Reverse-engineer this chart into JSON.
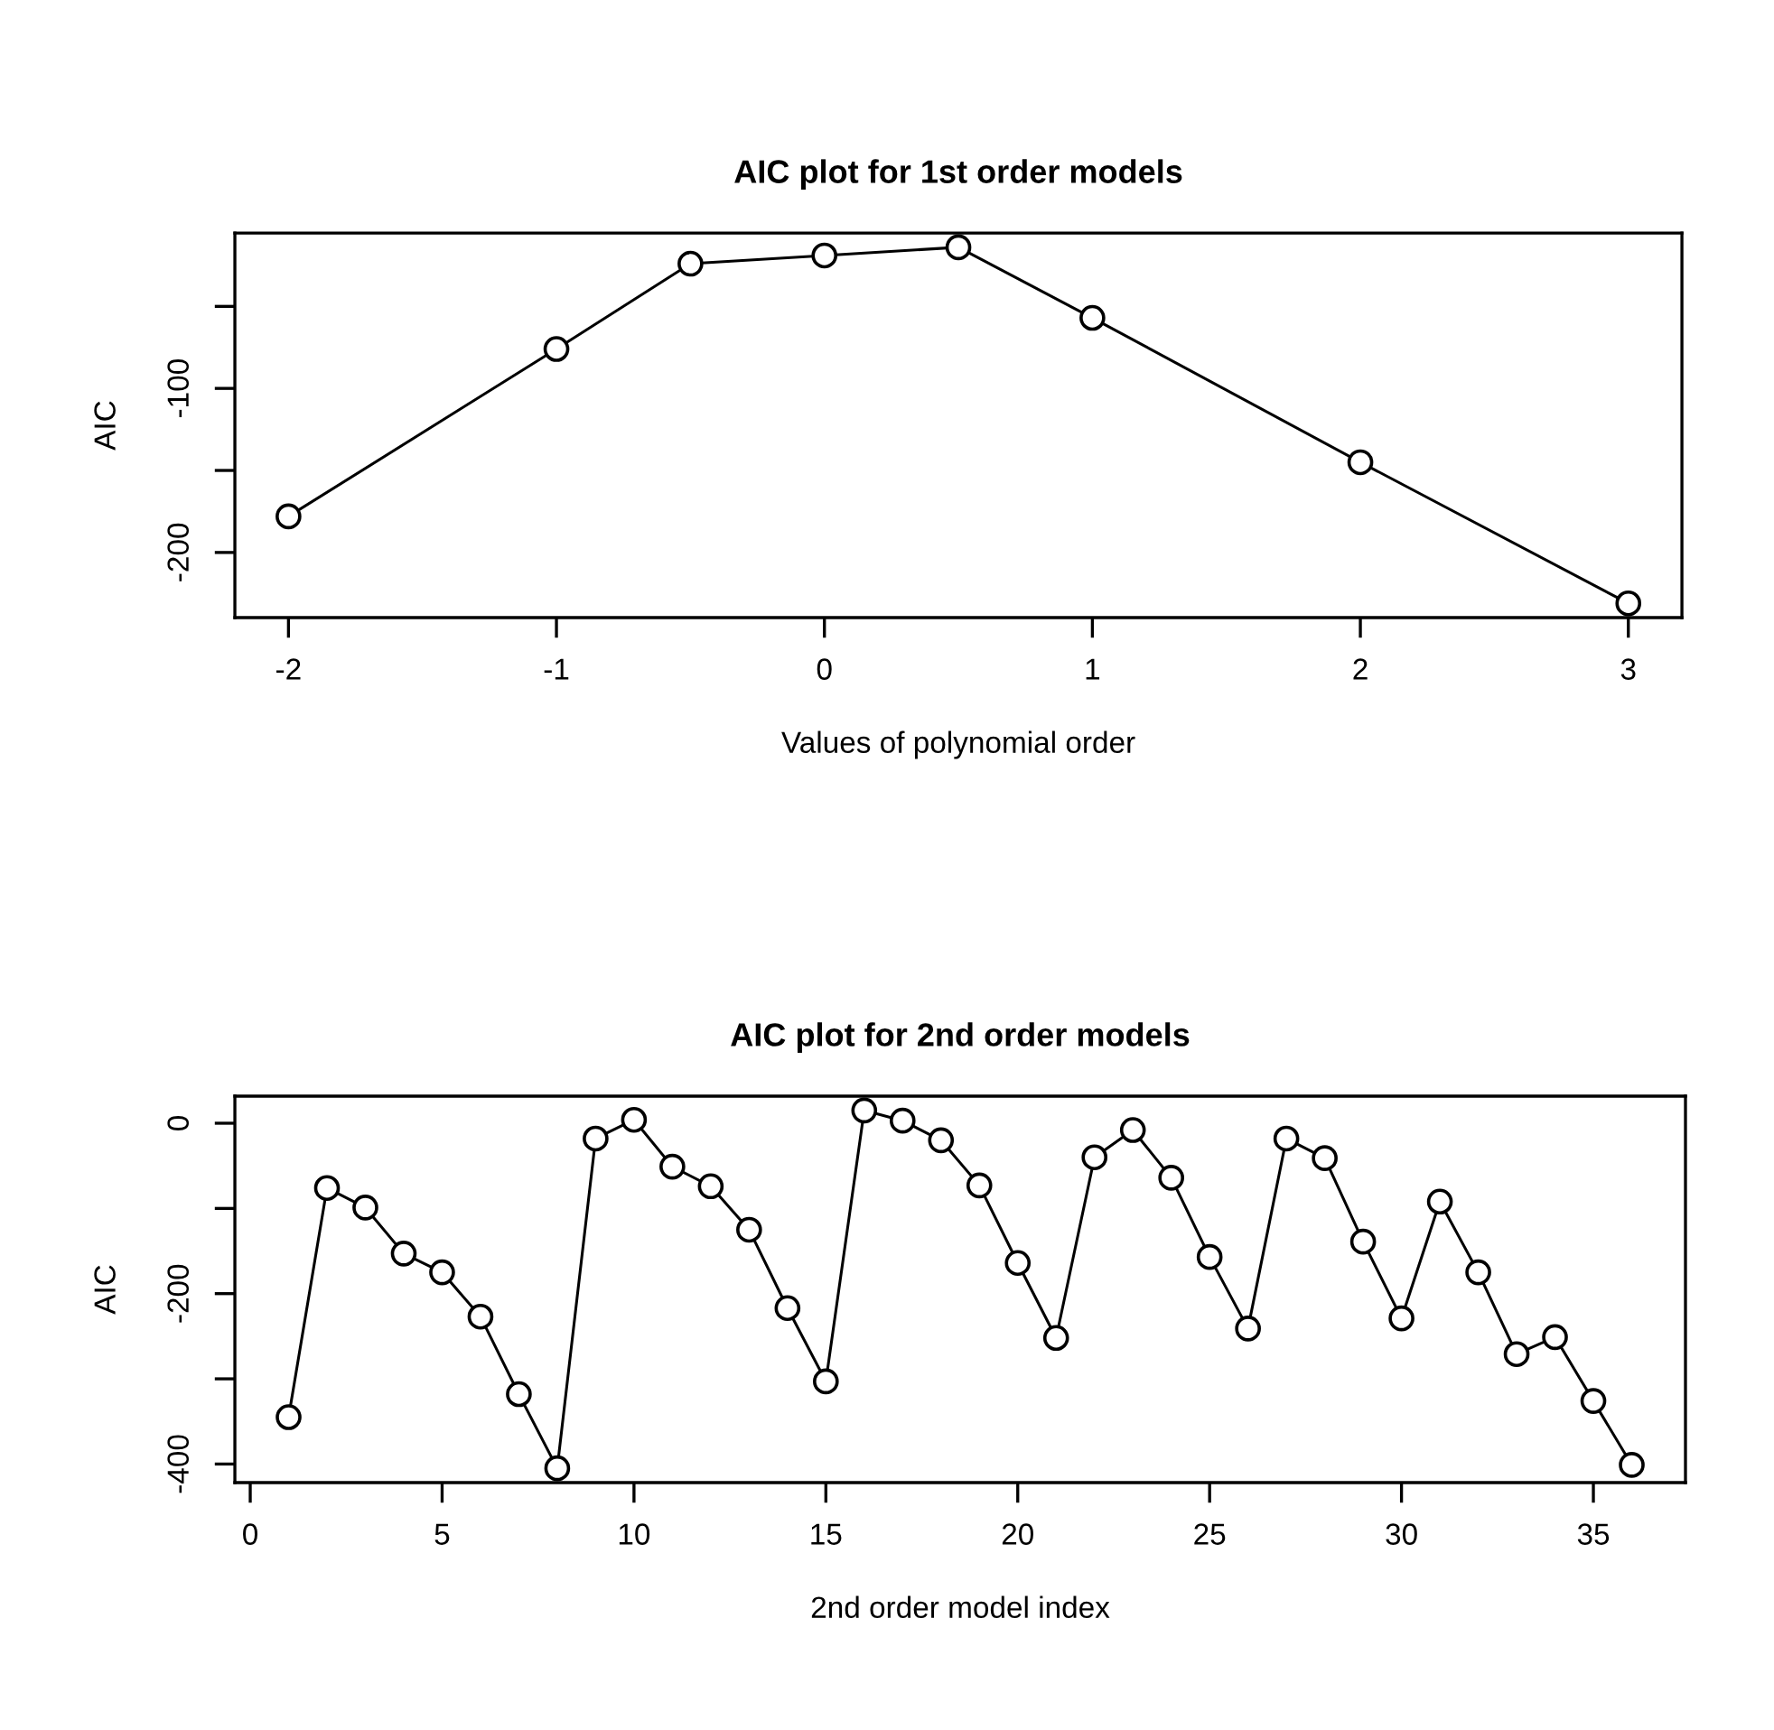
{
  "chart_data": [
    {
      "type": "line",
      "title": "AIC plot for 1st order models",
      "xlabel": "Values of polynomial order",
      "ylabel": "AIC",
      "marker": "circle",
      "line_style": "solid",
      "x": [
        -2,
        -1,
        -0.5,
        0,
        0.5,
        1,
        2,
        3
      ],
      "series": [
        {
          "color": "#000000",
          "values": [
            -178,
            -76,
            -24,
            -19,
            -14,
            -57,
            -145,
            -231
          ]
        }
      ],
      "xlim": [
        -2.2,
        3.2
      ],
      "ylim": [
        -239.7,
        -5.3
      ],
      "xticks": [
        -2,
        -1,
        0,
        1,
        2,
        3
      ],
      "yticks": [
        -200,
        {
          "value": -150,
          "label": null
        },
        -100,
        {
          "value": -50,
          "label": null
        }
      ]
    },
    {
      "type": "line",
      "title": "AIC plot for 2nd order models",
      "xlabel": "2nd order model index",
      "ylabel": "AIC",
      "marker": "circle",
      "line_style": "solid",
      "x": [
        1,
        2,
        3,
        4,
        5,
        6,
        7,
        8,
        9,
        10,
        11,
        12,
        13,
        14,
        15,
        16,
        17,
        18,
        19,
        20,
        21,
        22,
        23,
        24,
        25,
        26,
        27,
        28,
        29,
        30,
        31,
        32,
        33,
        34,
        35,
        36
      ],
      "series": [
        {
          "color": "#000000",
          "values": [
            -345,
            -76,
            -99,
            -153,
            -175,
            -227,
            -318,
            -405,
            -18,
            4,
            -51,
            -74,
            -125,
            -217,
            -303,
            15,
            3,
            -20,
            -73,
            -164,
            -252,
            -40,
            -8,
            -64,
            -157,
            -241,
            -18,
            -41,
            -139,
            -229,
            -92,
            -175,
            -271,
            -251,
            -326,
            -401
          ]
        }
      ],
      "xlim": [
        -0.4,
        37.4
      ],
      "ylim": [
        -421.8,
        31.8
      ],
      "xticks": [
        0,
        5,
        10,
        15,
        20,
        25,
        30,
        35
      ],
      "yticks": [
        -400,
        {
          "value": -300,
          "label": null
        },
        -200,
        {
          "value": -100,
          "label": null
        },
        0
      ]
    }
  ]
}
